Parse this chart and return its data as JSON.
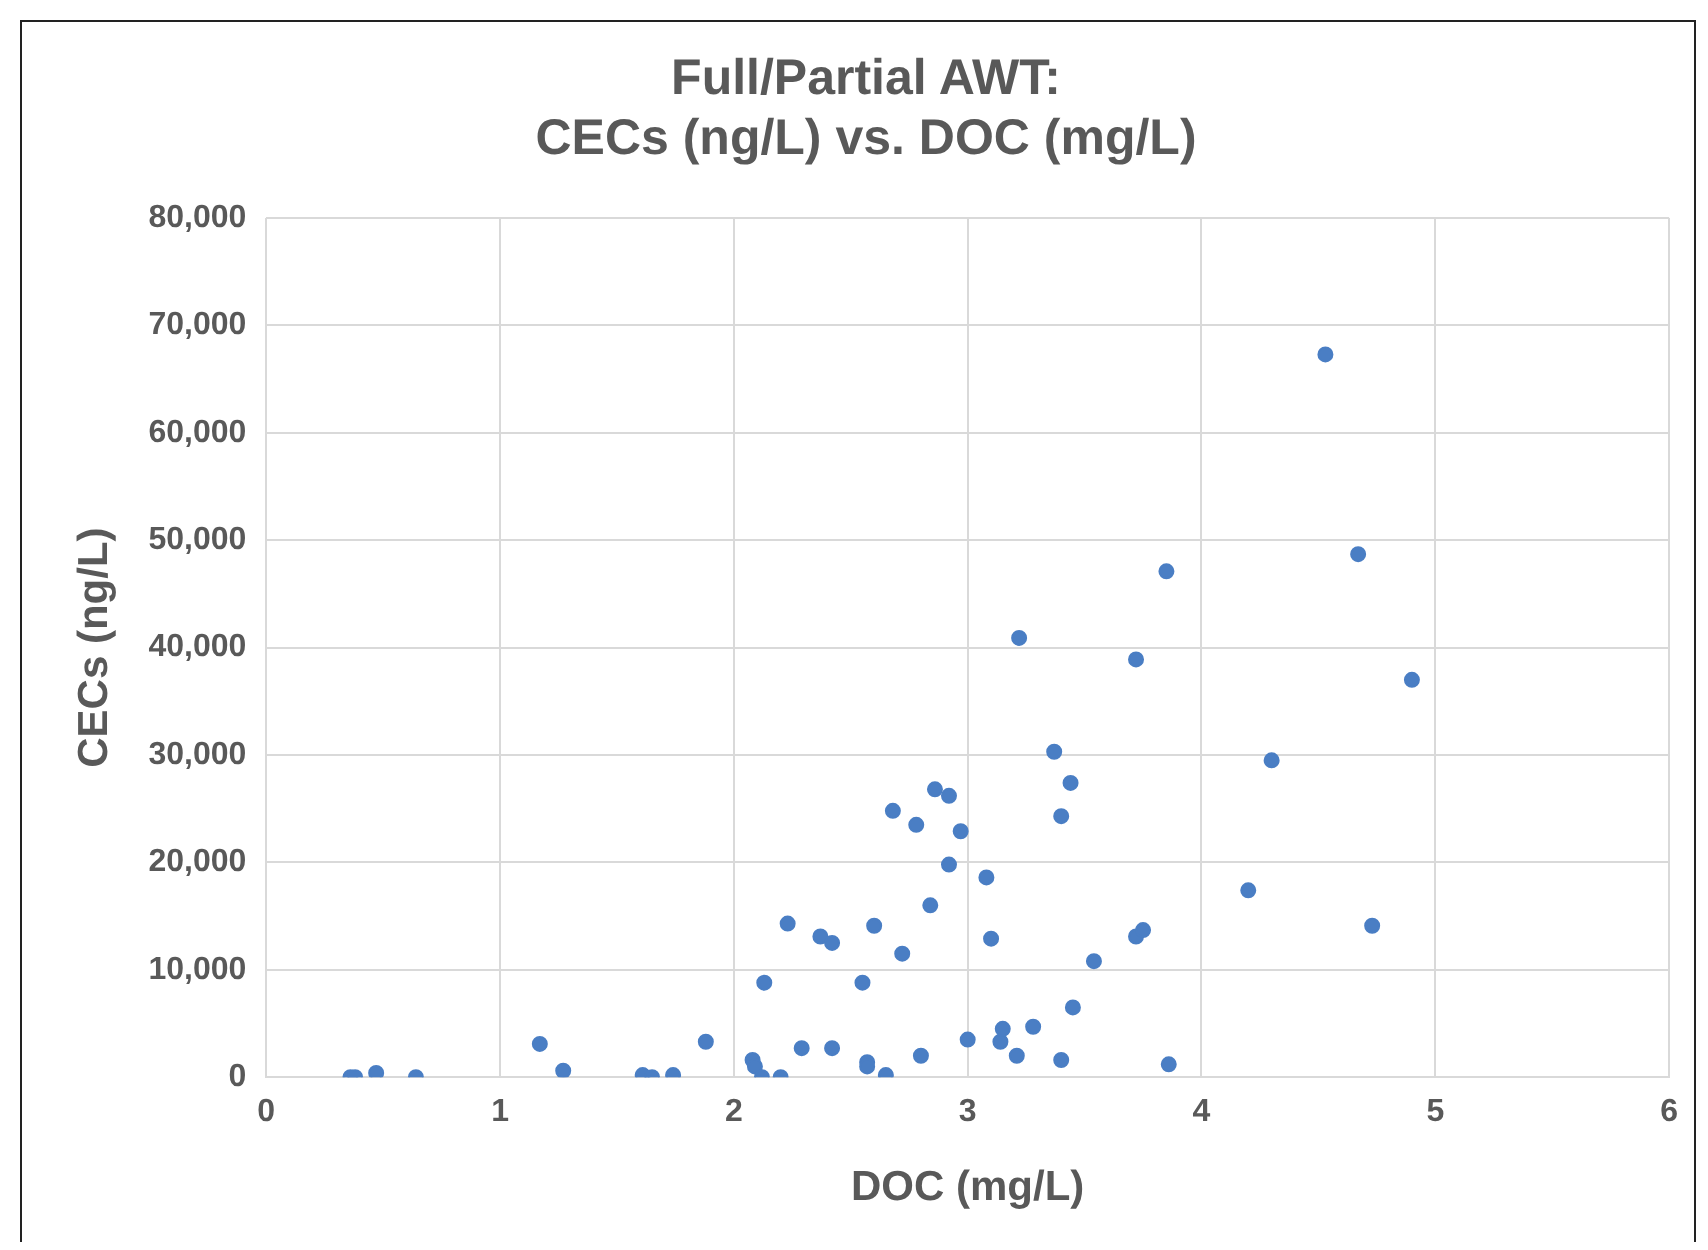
{
  "chart_data": {
    "type": "scatter",
    "title": "Full/Partial AWT:\nCECs (ng/L) vs. DOC (mg/L)",
    "xlabel": "DOC (mg/L)",
    "ylabel": "CECs (ng/L)",
    "x": [
      0.36,
      0.38,
      0.47,
      0.64,
      1.17,
      1.27,
      1.61,
      1.65,
      1.74,
      1.88,
      2.08,
      2.09,
      2.12,
      2.13,
      2.2,
      2.23,
      2.29,
      2.37,
      2.42,
      2.42,
      2.55,
      2.57,
      2.57,
      2.6,
      2.65,
      2.68,
      2.72,
      2.78,
      2.8,
      2.84,
      2.86,
      2.92,
      2.92,
      2.97,
      3.0,
      3.08,
      3.1,
      3.14,
      3.15,
      3.21,
      3.28,
      3.4,
      3.37,
      3.4,
      3.44,
      3.45,
      3.54,
      3.72,
      3.75,
      3.72,
      3.86,
      3.85,
      3.22,
      4.2,
      4.3,
      4.53,
      4.67,
      4.73,
      4.9
    ],
    "series": [
      {
        "color": "#4a7ec4",
        "values": [
          0,
          0,
          400,
          0,
          3100,
          600,
          200,
          0,
          200,
          3300,
          1600,
          1000,
          0,
          8800,
          0,
          14300,
          2700,
          13100,
          12500,
          2700,
          8800,
          1400,
          1000,
          14100,
          200,
          24800,
          11500,
          23500,
          2000,
          16000,
          26800,
          26200,
          19800,
          22900,
          3500,
          18600,
          12900,
          3300,
          4500,
          2000,
          4700,
          1600,
          30300,
          24300,
          27400,
          6500,
          10800,
          13100,
          13700,
          38900,
          1200,
          47100,
          40900,
          17400,
          29500,
          67300,
          48700,
          14100,
          37000
        ]
      }
    ],
    "xlim": [
      0,
      6
    ],
    "xticks": [
      0,
      1,
      2,
      3,
      4,
      5,
      6
    ],
    "ylim": [
      0,
      80000
    ],
    "yticks": [
      0,
      {
        "value": 10000,
        "label": "10,000"
      },
      {
        "value": 20000,
        "label": "20,000"
      },
      {
        "value": 30000,
        "label": "30,000"
      },
      {
        "value": 40000,
        "label": "40,000"
      },
      {
        "value": 50000,
        "label": "50,000"
      },
      {
        "value": 60000,
        "label": "60,000"
      },
      {
        "value": 70000,
        "label": "70,000"
      },
      {
        "value": 80000,
        "label": "80,000"
      }
    ],
    "grid": true,
    "legend": false,
    "marker": "circle"
  }
}
